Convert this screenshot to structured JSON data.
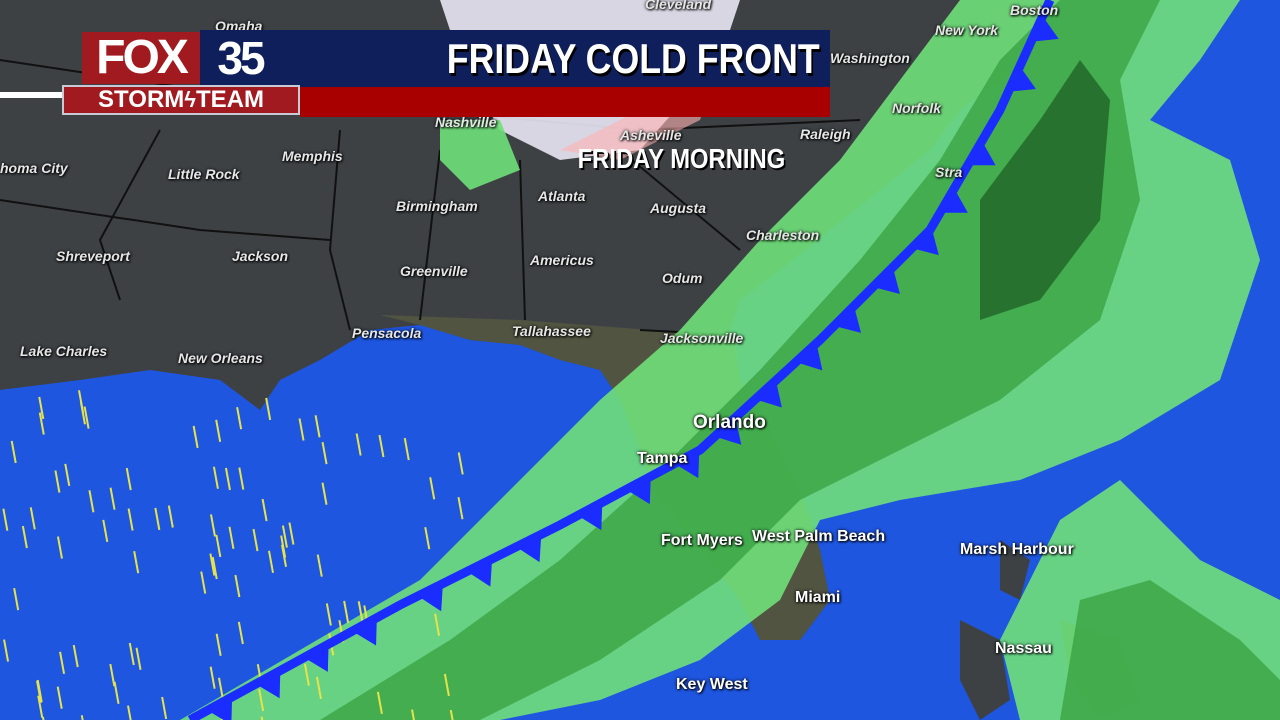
{
  "header": {
    "logo_fox": "FOX",
    "logo_number": "35",
    "logo_team_left": "STORM",
    "logo_team_right": "TEAM",
    "title": "FRIDAY COLD FRONT",
    "subtitle": "FRIDAY MORNING"
  },
  "colors": {
    "land": "#3d4144",
    "water": "#1f56e0",
    "rain_light": "#6fe07a",
    "rain_mid": "#3fa84a",
    "rain_heavy": "#236b2a",
    "cold_front": "#1a2cff",
    "header_navy": "#0f1f5c",
    "header_red": "#a80000"
  },
  "front": {
    "type": "cold-front"
  },
  "cities": [
    {
      "name": "Omaha"
    },
    {
      "name": "Cleveland"
    },
    {
      "name": "Boston"
    },
    {
      "name": "New York"
    },
    {
      "name": "Washington"
    },
    {
      "name": "Norfolk"
    },
    {
      "name": "Nashville"
    },
    {
      "name": "Asheville"
    },
    {
      "name": "Raleigh"
    },
    {
      "name": "homa City"
    },
    {
      "name": "Memphis"
    },
    {
      "name": "Little Rock"
    },
    {
      "name": "Birmingham"
    },
    {
      "name": "Atlanta"
    },
    {
      "name": "Augusta"
    },
    {
      "name": "Charleston"
    },
    {
      "name": "Shreveport"
    },
    {
      "name": "Jackson"
    },
    {
      "name": "Greenville"
    },
    {
      "name": "Americus"
    },
    {
      "name": "Odum"
    },
    {
      "name": "Pensacola"
    },
    {
      "name": "Tallahassee"
    },
    {
      "name": "Jacksonville"
    },
    {
      "name": "Lake Charles"
    },
    {
      "name": "New Orleans"
    },
    {
      "name": "Orlando"
    },
    {
      "name": "Tampa"
    },
    {
      "name": "Fort Myers"
    },
    {
      "name": "West Palm Beach"
    },
    {
      "name": "Marsh Harbour"
    },
    {
      "name": "Miami"
    },
    {
      "name": "Nassau"
    },
    {
      "name": "Key West"
    },
    {
      "name": "Stra"
    }
  ]
}
